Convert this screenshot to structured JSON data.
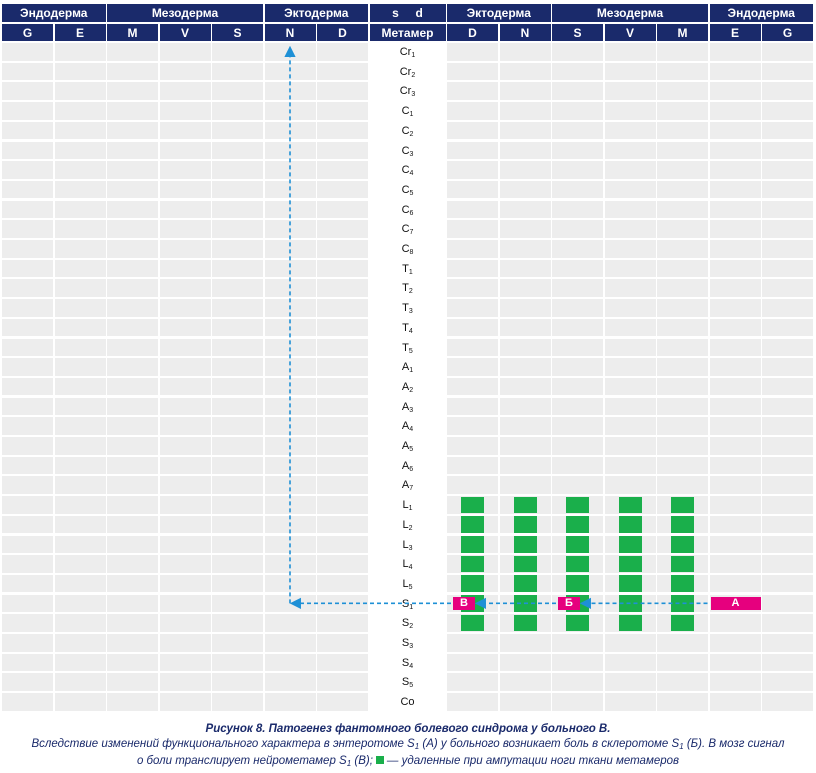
{
  "header": {
    "groups_left": [
      {
        "label": "Эндодерма",
        "span": 2
      },
      {
        "label": "Мезодерма",
        "span": 3
      },
      {
        "label": "Эктодерма",
        "span": 2
      }
    ],
    "center_label": "s     d",
    "groups_right": [
      {
        "label": "Эктодерма",
        "span": 2
      },
      {
        "label": "Мезодерма",
        "span": 3
      },
      {
        "label": "Эндодерма",
        "span": 2
      }
    ],
    "columns_left": [
      "G",
      "E",
      "M",
      "V",
      "S",
      "N",
      "D"
    ],
    "center_column": "Метамер",
    "columns_right": [
      "D",
      "N",
      "S",
      "V",
      "M",
      "E",
      "G"
    ]
  },
  "metamers": [
    {
      "base": "Cr",
      "sub": "1"
    },
    {
      "base": "Cr",
      "sub": "2"
    },
    {
      "base": "Cr",
      "sub": "3"
    },
    {
      "base": "C",
      "sub": "1"
    },
    {
      "base": "C",
      "sub": "2"
    },
    {
      "base": "C",
      "sub": "3"
    },
    {
      "base": "C",
      "sub": "4"
    },
    {
      "base": "C",
      "sub": "5"
    },
    {
      "base": "C",
      "sub": "6"
    },
    {
      "base": "C",
      "sub": "7"
    },
    {
      "base": "C",
      "sub": "8"
    },
    {
      "base": "T",
      "sub": "1"
    },
    {
      "base": "T",
      "sub": "2"
    },
    {
      "base": "T",
      "sub": "3"
    },
    {
      "base": "T",
      "sub": "4"
    },
    {
      "base": "T",
      "sub": "5"
    },
    {
      "base": "A",
      "sub": "1"
    },
    {
      "base": "A",
      "sub": "2"
    },
    {
      "base": "A",
      "sub": "3"
    },
    {
      "base": "A",
      "sub": "4"
    },
    {
      "base": "A",
      "sub": "5"
    },
    {
      "base": "A",
      "sub": "6"
    },
    {
      "base": "A",
      "sub": "7"
    },
    {
      "base": "L",
      "sub": "1"
    },
    {
      "base": "L",
      "sub": "2"
    },
    {
      "base": "L",
      "sub": "3"
    },
    {
      "base": "L",
      "sub": "4"
    },
    {
      "base": "L",
      "sub": "5"
    },
    {
      "base": "S",
      "sub": "1"
    },
    {
      "base": "S",
      "sub": "2"
    },
    {
      "base": "S",
      "sub": "3"
    },
    {
      "base": "S",
      "sub": "4"
    },
    {
      "base": "S",
      "sub": "5"
    },
    {
      "base": "Co",
      "sub": ""
    }
  ],
  "removed_tissue": {
    "columns": [
      "D",
      "N",
      "S",
      "V",
      "M"
    ],
    "from_metamer": "L1",
    "to_metamer": "S2"
  },
  "markers": [
    {
      "label": "А",
      "column": "E",
      "metamer": "S1"
    },
    {
      "label": "Б",
      "column": "S",
      "metamer": "S1"
    },
    {
      "label": "В",
      "column": "D",
      "metamer": "S1"
    }
  ],
  "caption": {
    "title": "Рисунок 8.  Патогенез фантомного болевого синдрома у больного В.",
    "line1_a": "Вследствие изменений функционального характера в энтеротоме S",
    "line1_sub1": "1",
    "line1_b": " (А) у больного возникает боль в склеротоме S",
    "line1_sub2": "1",
    "line1_c": " (Б). В мозг сигнал",
    "line2_a": "о боли транслирует нейрометамер S",
    "line2_sub": "1",
    "line2_b": " (В);",
    "legend_text": "— удаленные при ампутации ноги ткани метамеров"
  },
  "colors": {
    "header": "#1a2a6b",
    "cell": "#ededed",
    "removed": "#1aaf4b",
    "marker": "#e6007e",
    "arrow": "#1e90d6",
    "caption": "#1a2a6b"
  }
}
